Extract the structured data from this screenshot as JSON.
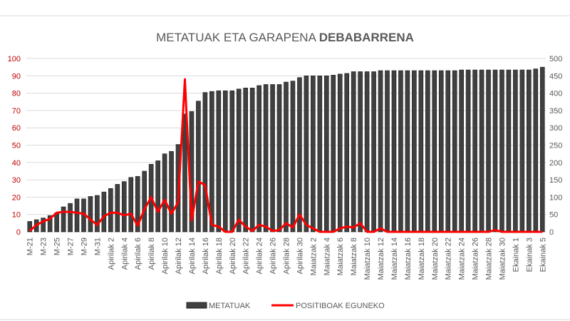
{
  "chart_data": {
    "type": "bar+line",
    "title_prefix": "METATUAK ETA GARAPENA ",
    "title_bold": "DEBABARRENA",
    "left_axis": {
      "ylim": [
        0,
        100
      ],
      "ticks": [
        "0",
        "10",
        "20",
        "30",
        "40",
        "50",
        "60",
        "70",
        "80",
        "90",
        "100"
      ],
      "color": "#c00000"
    },
    "right_axis": {
      "ylim": [
        0,
        500
      ],
      "ticks": [
        "0",
        "50",
        "100",
        "150",
        "200",
        "250",
        "300",
        "350",
        "400",
        "450",
        "500"
      ],
      "color": "#595959"
    },
    "x_tick_labels": [
      "M-21",
      "M-23",
      "M-25",
      "M-27",
      "M-29",
      "M-31",
      "Apirilak 2",
      "Apirilak 4",
      "Apirilak 6",
      "Apirilak 8",
      "Apirilak 10",
      "Apirilak 12",
      "Apirilak 14",
      "Apirilak 16",
      "Apirilak 18",
      "Apirilak 20",
      "Apirilak 22",
      "Apirilak 24",
      "Apirilak 26",
      "Apirilak 28",
      "Apirilak 30",
      "Maiatzak 2",
      "Maiatzak 4",
      "Maiatzak 6",
      "Maiatzak 8",
      "Maiatzak 10",
      "Maiatzak 12",
      "Maiatzak 14",
      "Maiatzak 16",
      "Maiatzak 18",
      "Maiatzak 20",
      "Maiatzak 22",
      "Maiatzak 24",
      "Maiatzak 26",
      "Maiatzak 28",
      "Maiatzak 30",
      "Ekainak 1",
      "Ekainak 3",
      "Ekainak 5"
    ],
    "series": [
      {
        "name": "METATUAK",
        "type": "bar",
        "axis": "right",
        "color": "#404040",
        "values": [
          30,
          35,
          40,
          47,
          55,
          72,
          82,
          95,
          95,
          102,
          105,
          115,
          125,
          137,
          145,
          157,
          160,
          175,
          195,
          205,
          225,
          232,
          252,
          340,
          347,
          377,
          402,
          405,
          407,
          407,
          407,
          412,
          415,
          415,
          422,
          425,
          425,
          425,
          432,
          435,
          445,
          450,
          450,
          450,
          450,
          452,
          455,
          457,
          462,
          462,
          462,
          462,
          465,
          465,
          465,
          465,
          465,
          465,
          465,
          465,
          465,
          465,
          465,
          465,
          467,
          467,
          467,
          467,
          467,
          467,
          467,
          467,
          467,
          467,
          467,
          470,
          475
        ]
      },
      {
        "name": "POSITIBOAK EGUNEKO",
        "type": "line",
        "axis": "left",
        "color": "#ff0000",
        "values": [
          0.5,
          4,
          6,
          7.5,
          11,
          11.5,
          11.5,
          11,
          10.5,
          7,
          4,
          9,
          11,
          11,
          9.5,
          10.5,
          3.5,
          13,
          20,
          11.5,
          18.5,
          10.5,
          17,
          88,
          6.5,
          29,
          27,
          4,
          3,
          0,
          0,
          7,
          3,
          0.5,
          4,
          3,
          0.5,
          1,
          5,
          2.5,
          10,
          4,
          2,
          0,
          0,
          0,
          2,
          3,
          2.5,
          5,
          0,
          0,
          2,
          0,
          0,
          0,
          0,
          0,
          0,
          0,
          0,
          0,
          0,
          0,
          0,
          0,
          0,
          0,
          0,
          1,
          0,
          0,
          0,
          0,
          0,
          0,
          0
        ]
      }
    ],
    "legend_position": "bottom",
    "grid": true
  }
}
